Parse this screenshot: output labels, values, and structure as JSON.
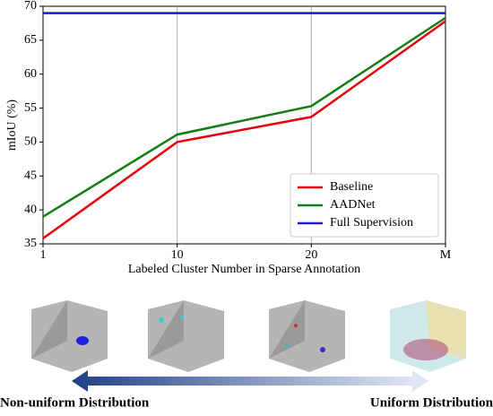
{
  "chart_data": {
    "type": "line",
    "x_label": "Labeled Cluster Number in Sparse Annotation",
    "y_label": "mIoU (%)",
    "categories": [
      "1",
      "10",
      "20",
      "M"
    ],
    "series": [
      {
        "name": "Baseline",
        "color": "#e8000b",
        "values": [
          35.8,
          50.0,
          53.7,
          67.8
        ]
      },
      {
        "name": "AADNet",
        "color": "#137e13",
        "values": [
          39.0,
          51.1,
          55.3,
          68.3
        ]
      },
      {
        "name": "Full Supervision",
        "color": "#1a1ac8",
        "values": [
          69.0,
          69.0,
          69.0,
          69.0
        ]
      }
    ],
    "ylim": [
      35,
      70
    ],
    "yticks": [
      35,
      40,
      45,
      50,
      55,
      60,
      65,
      70
    ],
    "grid": true,
    "legend": "lower right"
  },
  "footer": {
    "left_label": "Non-uniform Distribution",
    "right_label": "Uniform Distribution"
  }
}
